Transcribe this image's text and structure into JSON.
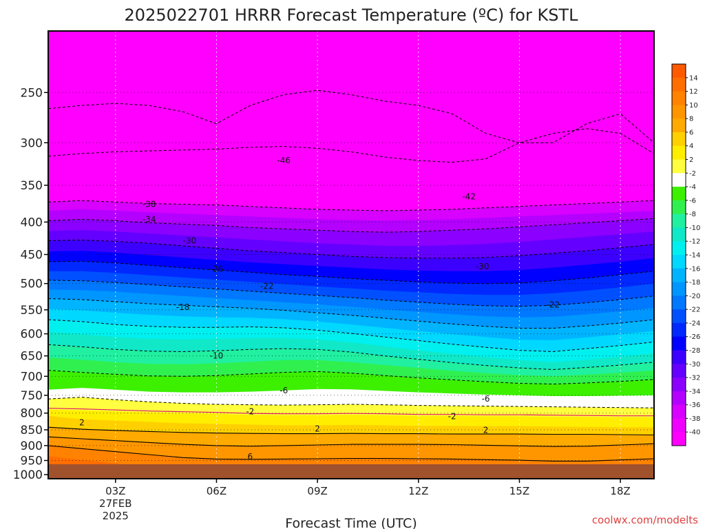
{
  "chart_data": {
    "type": "heatmap",
    "title": "2025022701 HRRR Forecast Temperature (ºC) for KSTL",
    "xlabel": "Forecast Time (UTC)",
    "ylabel": "",
    "y_axis": {
      "scale": "log-pressure",
      "ticks": [
        250,
        300,
        350,
        400,
        450,
        500,
        550,
        600,
        650,
        700,
        750,
        800,
        850,
        900,
        950,
        1000
      ],
      "range": [
        200,
        1015
      ],
      "inverted": true
    },
    "x_axis": {
      "range": [
        1,
        19
      ],
      "ticks": [
        {
          "hour": 3,
          "label": "03Z",
          "sub1": "27FEB",
          "sub2": "2025"
        },
        {
          "hour": 6,
          "label": "06Z",
          "sub1": "",
          "sub2": ""
        },
        {
          "hour": 9,
          "label": "09Z",
          "sub1": "",
          "sub2": ""
        },
        {
          "hour": 12,
          "label": "12Z",
          "sub1": "",
          "sub2": ""
        },
        {
          "hour": 15,
          "label": "15Z",
          "sub1": "",
          "sub2": ""
        },
        {
          "hour": 18,
          "label": "18Z",
          "sub1": "",
          "sub2": ""
        }
      ]
    },
    "colorbar": {
      "levels": [
        14,
        12,
        10,
        8,
        6,
        4,
        2,
        -2,
        -4,
        -6,
        -8,
        -10,
        -12,
        -14,
        -16,
        -18,
        -20,
        -22,
        -24,
        -26,
        -28,
        -30,
        -32,
        -34,
        -36,
        -38,
        -40
      ],
      "colors": [
        "#ff5a00",
        "#ff6e00",
        "#ff8200",
        "#ff9600",
        "#ffaa00",
        "#ffd000",
        "#ffee00",
        "#ffff40",
        "#ffffff",
        "#3cf000",
        "#30f050",
        "#20f0a0",
        "#10e8c8",
        "#00f0f0",
        "#00d8ff",
        "#00b4ff",
        "#0096ff",
        "#0078ff",
        "#0050ff",
        "#0028ff",
        "#0000ff",
        "#3c00ff",
        "#6400ff",
        "#8c00ff",
        "#b400ff",
        "#d800ff",
        "#f000ff",
        "#ff00ff"
      ]
    },
    "isotherms": [
      {
        "label": "-46",
        "at_hour": 8,
        "pressure": 320
      },
      {
        "label": "-42",
        "at_hour": 13.5,
        "pressure": 365
      },
      {
        "label": "-38",
        "at_hour": 4,
        "pressure": 375
      },
      {
        "label": "-34",
        "at_hour": 4,
        "pressure": 396
      },
      {
        "label": "-30",
        "at_hour": 5.2,
        "pressure": 428
      },
      {
        "label": "-30",
        "at_hour": 13.9,
        "pressure": 470
      },
      {
        "label": "-26",
        "at_hour": 6,
        "pressure": 474
      },
      {
        "label": "-22",
        "at_hour": 7.5,
        "pressure": 505
      },
      {
        "label": "-22",
        "at_hour": 16,
        "pressure": 540
      },
      {
        "label": "-18",
        "at_hour": 5,
        "pressure": 545
      },
      {
        "label": "-10",
        "at_hour": 6,
        "pressure": 650
      },
      {
        "label": "-6",
        "at_hour": 8,
        "pressure": 737
      },
      {
        "label": "-6",
        "at_hour": 14,
        "pressure": 760
      },
      {
        "label": "2",
        "at_hour": 2,
        "pressure": 828
      },
      {
        "label": "-2",
        "at_hour": 7,
        "pressure": 796
      },
      {
        "label": "-2",
        "at_hour": 13,
        "pressure": 810
      },
      {
        "label": "2",
        "at_hour": 9,
        "pressure": 847
      },
      {
        "label": "2",
        "at_hour": 14,
        "pressure": 851
      },
      {
        "label": "6",
        "at_hour": 7,
        "pressure": 937
      }
    ]
  },
  "credit": "coolwx.com/modelts",
  "ground_color": "#a0522d"
}
